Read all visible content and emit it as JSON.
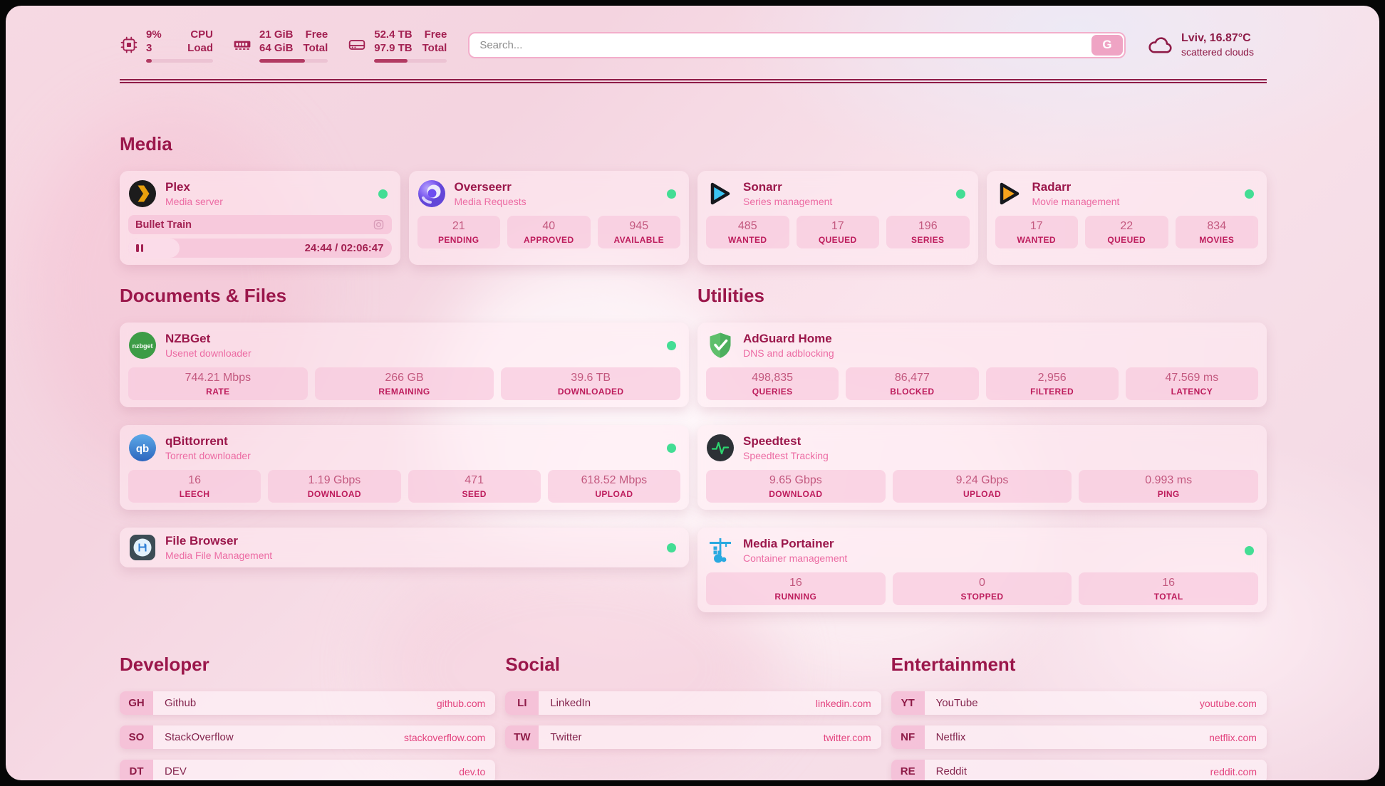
{
  "header": {
    "stats": [
      {
        "icon": "cpu-icon",
        "values": [
          "9%",
          "3"
        ],
        "labels": [
          "CPU",
          "Load"
        ],
        "progress_pct": 9
      },
      {
        "icon": "ram-icon",
        "values": [
          "21 GiB",
          "64 GiB"
        ],
        "labels": [
          "Free",
          "Total"
        ],
        "progress_pct": 67
      },
      {
        "icon": "disk-icon",
        "values": [
          "52.4 TB",
          "97.9 TB"
        ],
        "labels": [
          "Free",
          "Total"
        ],
        "progress_pct": 46
      }
    ],
    "search": {
      "placeholder": "Search...",
      "engine_button": "G"
    },
    "weather": {
      "icon": "cloud-icon",
      "location_temp": "Lviv, 16.87°C",
      "condition": "scattered clouds"
    }
  },
  "sections": {
    "media": {
      "title": "Media",
      "apps": [
        {
          "name": "Plex",
          "description": "Media server",
          "online": true,
          "now_playing": {
            "title": "Bullet Train",
            "time": "24:44 / 02:06:47",
            "progress_pct": 19.5
          }
        },
        {
          "name": "Overseerr",
          "description": "Media Requests",
          "online": true,
          "stats": [
            {
              "value": "21",
              "label": "PENDING"
            },
            {
              "value": "40",
              "label": "APPROVED"
            },
            {
              "value": "945",
              "label": "AVAILABLE"
            }
          ]
        },
        {
          "name": "Sonarr",
          "description": "Series management",
          "online": true,
          "stats": [
            {
              "value": "485",
              "label": "WANTED"
            },
            {
              "value": "17",
              "label": "QUEUED"
            },
            {
              "value": "196",
              "label": "SERIES"
            }
          ]
        },
        {
          "name": "Radarr",
          "description": "Movie management",
          "online": true,
          "stats": [
            {
              "value": "17",
              "label": "WANTED"
            },
            {
              "value": "22",
              "label": "QUEUED"
            },
            {
              "value": "834",
              "label": "MOVIES"
            }
          ]
        }
      ]
    },
    "documents": {
      "title": "Documents & Files",
      "apps": [
        {
          "name": "NZBGet",
          "description": "Usenet downloader",
          "online": true,
          "stats": [
            {
              "value": "744.21 Mbps",
              "label": "RATE"
            },
            {
              "value": "266 GB",
              "label": "REMAINING"
            },
            {
              "value": "39.6 TB",
              "label": "DOWNLOADED"
            }
          ]
        },
        {
          "name": "qBittorrent",
          "description": "Torrent downloader",
          "online": true,
          "stats": [
            {
              "value": "16",
              "label": "LEECH"
            },
            {
              "value": "1.19 Gbps",
              "label": "DOWNLOAD"
            },
            {
              "value": "471",
              "label": "SEED"
            },
            {
              "value": "618.52 Mbps",
              "label": "UPLOAD"
            }
          ]
        },
        {
          "name": "File Browser",
          "description": "Media File Management",
          "online": true
        }
      ]
    },
    "utilities": {
      "title": "Utilities",
      "apps": [
        {
          "name": "AdGuard Home",
          "description": "DNS and adblocking",
          "stats": [
            {
              "value": "498,835",
              "label": "QUERIES"
            },
            {
              "value": "86,477",
              "label": "BLOCKED"
            },
            {
              "value": "2,956",
              "label": "FILTERED"
            },
            {
              "value": "47.569 ms",
              "label": "LATENCY"
            }
          ]
        },
        {
          "name": "Speedtest",
          "description": "Speedtest Tracking",
          "stats": [
            {
              "value": "9.65 Gbps",
              "label": "DOWNLOAD"
            },
            {
              "value": "9.24 Gbps",
              "label": "UPLOAD"
            },
            {
              "value": "0.993 ms",
              "label": "PING"
            }
          ]
        },
        {
          "name": "Media Portainer",
          "description": "Container management",
          "online": true,
          "stats": [
            {
              "value": "16",
              "label": "RUNNING"
            },
            {
              "value": "0",
              "label": "STOPPED"
            },
            {
              "value": "16",
              "label": "TOTAL"
            }
          ]
        }
      ]
    },
    "developer": {
      "title": "Developer",
      "bookmarks": [
        {
          "abbr": "GH",
          "name": "Github",
          "url": "github.com"
        },
        {
          "abbr": "SO",
          "name": "StackOverflow",
          "url": "stackoverflow.com"
        },
        {
          "abbr": "DT",
          "name": "DEV",
          "url": "dev.to"
        }
      ]
    },
    "social": {
      "title": "Social",
      "bookmarks": [
        {
          "abbr": "LI",
          "name": "LinkedIn",
          "url": "linkedin.com"
        },
        {
          "abbr": "TW",
          "name": "Twitter",
          "url": "twitter.com"
        }
      ]
    },
    "entertainment": {
      "title": "Entertainment",
      "bookmarks": [
        {
          "abbr": "YT",
          "name": "YouTube",
          "url": "youtube.com"
        },
        {
          "abbr": "NF",
          "name": "Netflix",
          "url": "netflix.com"
        },
        {
          "abbr": "RE",
          "name": "Reddit",
          "url": "reddit.com"
        }
      ]
    }
  },
  "colors": {
    "accent": "#9b174b",
    "link_pink": "#e3447f",
    "online_dot": "#43dd94"
  }
}
